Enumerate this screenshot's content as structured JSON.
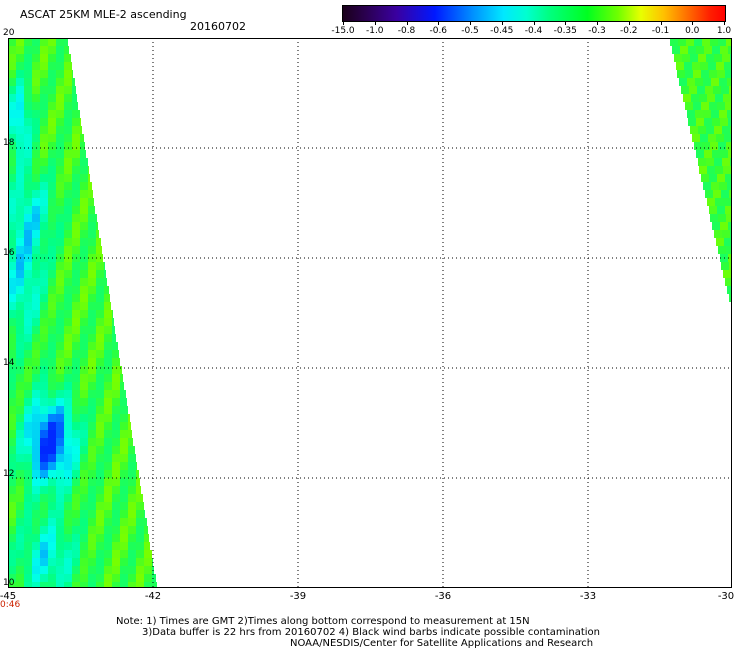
{
  "header": {
    "title": "ASCAT 25KM MLE-2 ascending",
    "date": "20160702"
  },
  "colorbar": {
    "ticks": [
      "-15.0",
      "-1.0",
      "-0.8",
      "-0.6",
      "-0.5",
      "-0.45",
      "-0.4",
      "-0.35",
      "-0.3",
      "-0.2",
      "-0.1",
      "0.0",
      "1.0"
    ]
  },
  "map": {
    "y_labels": [
      "20",
      "18",
      "16",
      "14",
      "12",
      "10"
    ],
    "x_labels": [
      "-45",
      "-42",
      "-39",
      "-36",
      "-33",
      "-30"
    ],
    "time_label": "0:46"
  },
  "footer": {
    "line1": "Note: 1) Times are GMT 2)Times along bottom correspond to measurement at 15N",
    "line2": "3)Data buffer is 22 hrs from 20160702 4) Black wind barbs indicate possible contamination",
    "line3": "NOAA/NESDIS/Center for Satellite Applications and Research"
  },
  "colors": {
    "dominant_swath": "#33ff33",
    "deep_low": "#0033ff",
    "cyan_low": "#00ffee"
  }
}
